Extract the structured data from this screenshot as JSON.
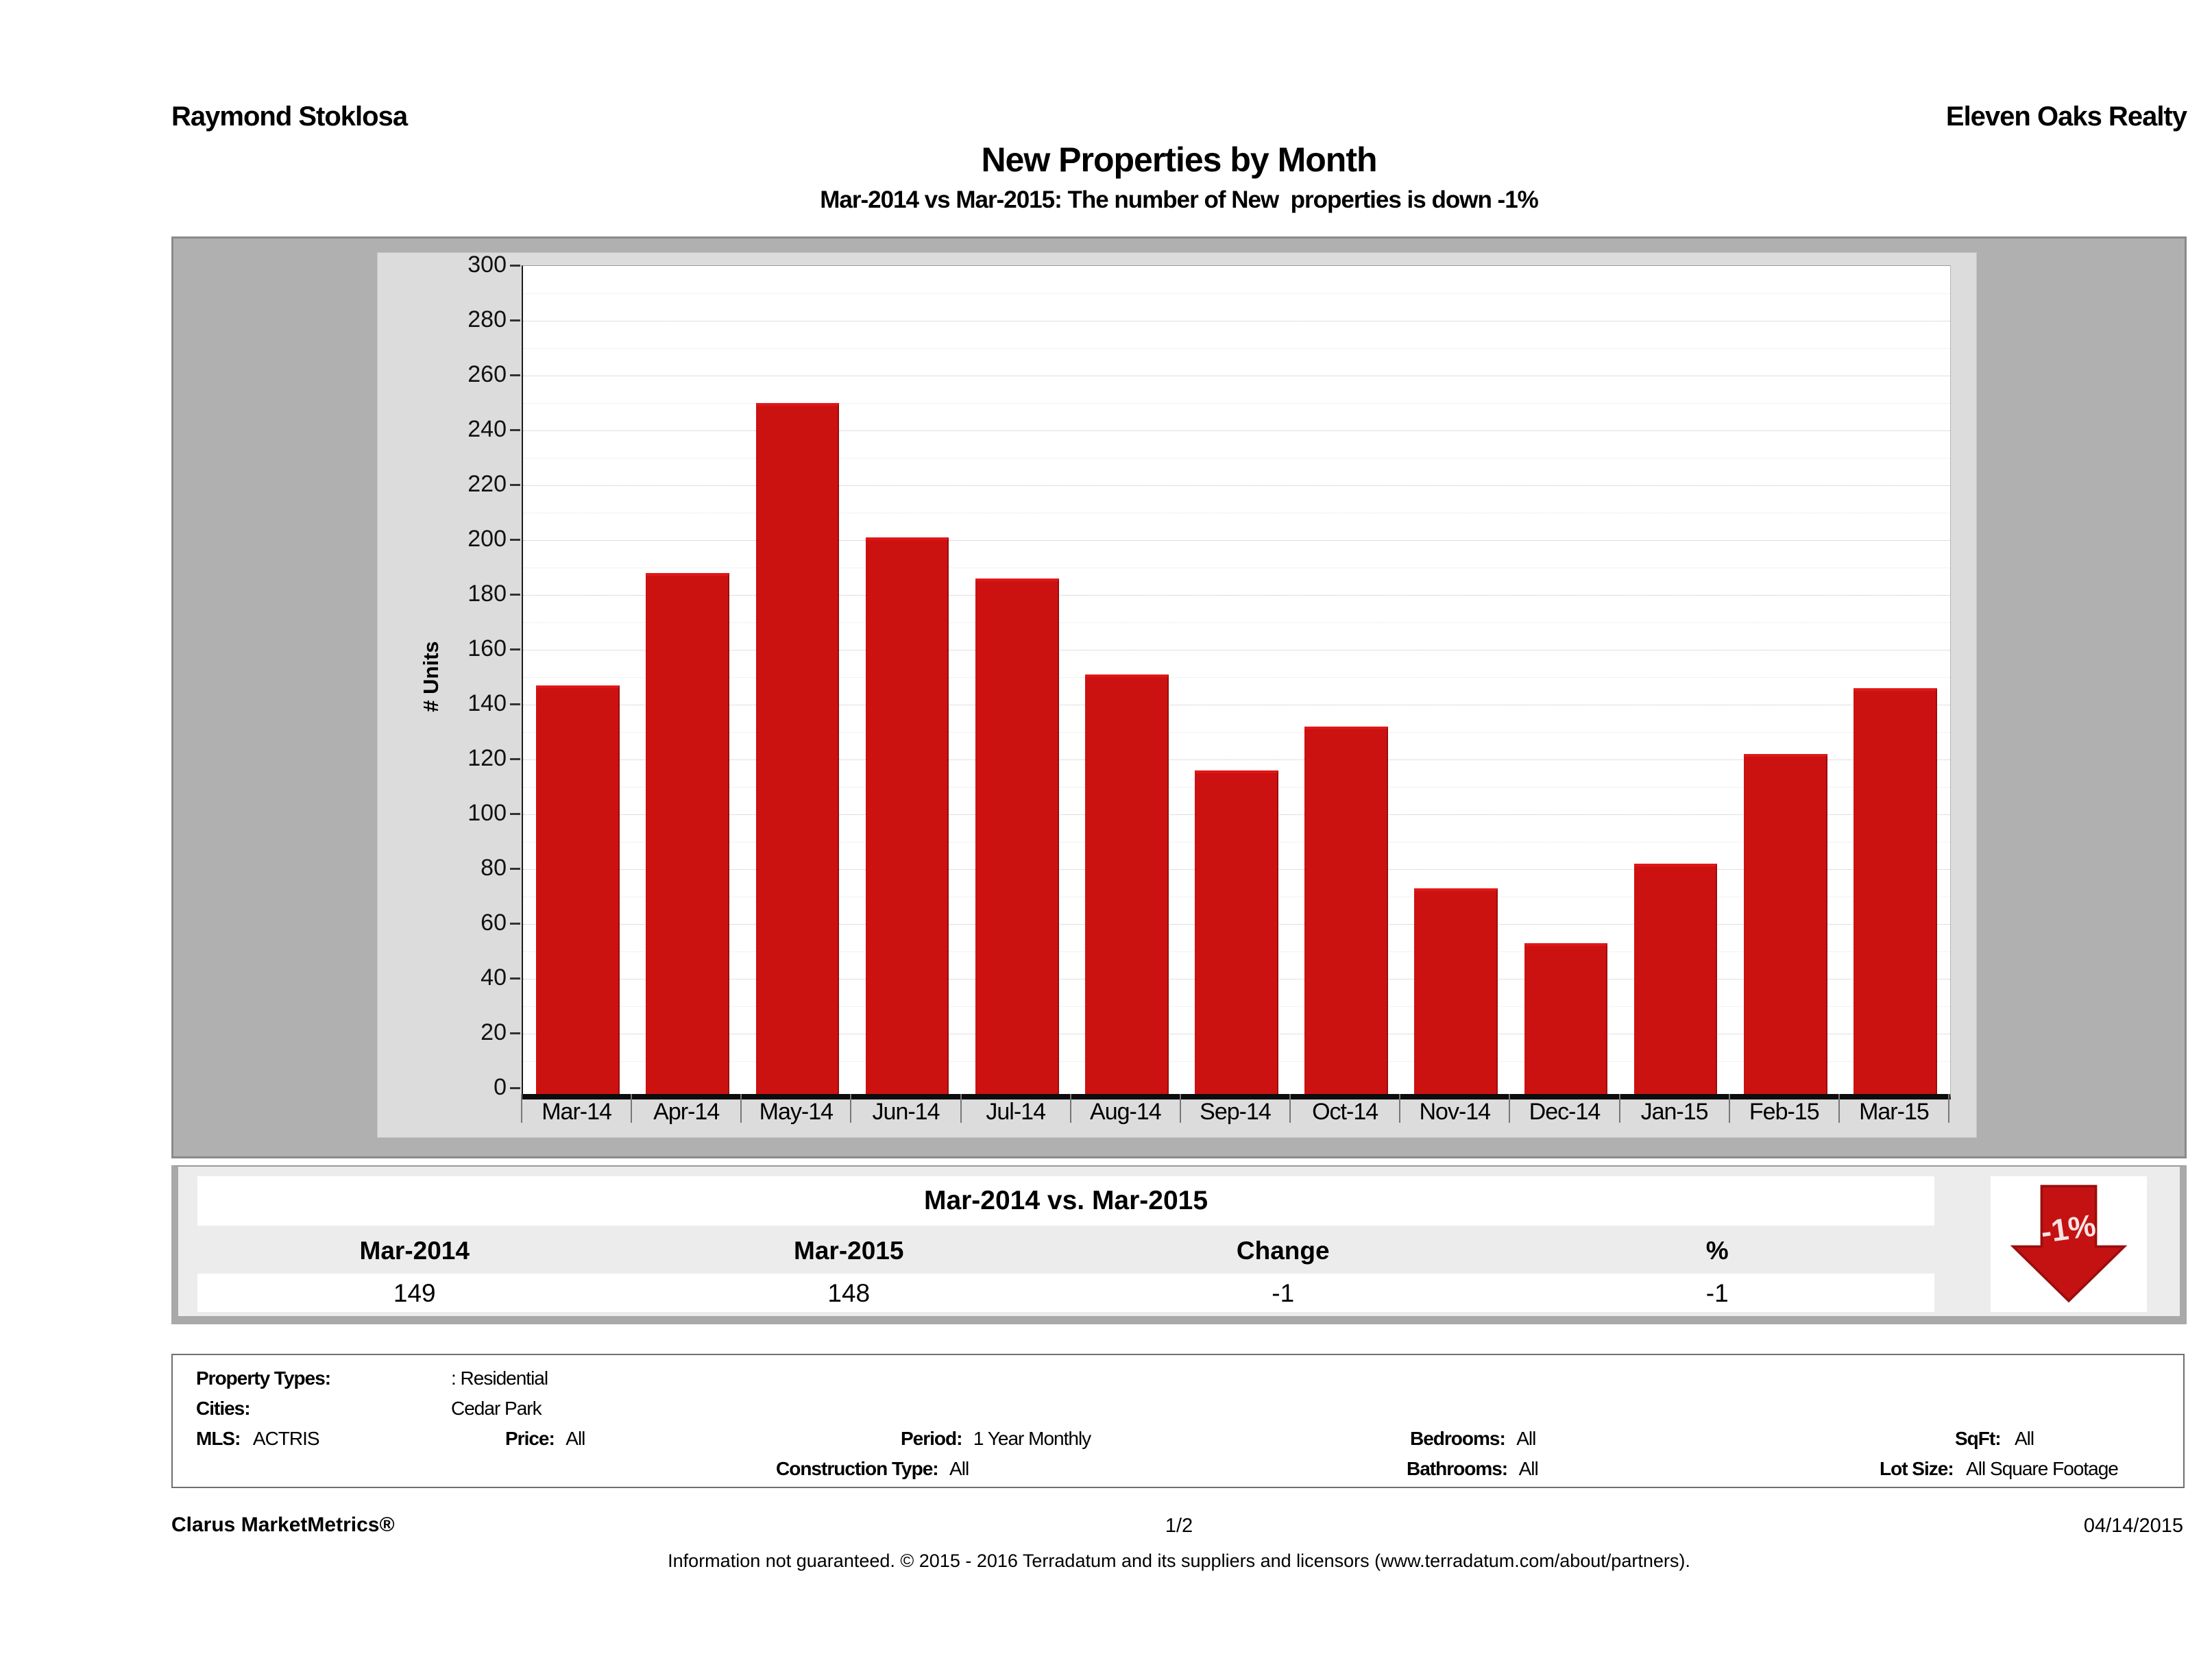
{
  "header": {
    "agent": "Raymond Stoklosa",
    "company": "Eleven Oaks Realty",
    "title": "New Properties by Month",
    "subtitle": "Mar-2014 vs Mar-2015: The number of New  properties is down -1%"
  },
  "chart_data": {
    "type": "bar",
    "title": "New Properties by Month",
    "categories": [
      "Mar-14",
      "Apr-14",
      "May-14",
      "Jun-14",
      "Jul-14",
      "Aug-14",
      "Sep-14",
      "Oct-14",
      "Nov-14",
      "Dec-14",
      "Jan-15",
      "Feb-15",
      "Mar-15"
    ],
    "values": [
      149,
      190,
      252,
      203,
      188,
      153,
      118,
      134,
      75,
      55,
      84,
      124,
      148
    ],
    "xlabel": "",
    "ylabel": "# Units",
    "ylim": [
      0,
      300
    ],
    "ytick_step": 20,
    "minor_grid_step": 10,
    "grid": true,
    "legend": "none",
    "bar_color": "#cc1111"
  },
  "comparison": {
    "title": "Mar-2014 vs. Mar-2015",
    "columns": [
      "Mar-2014",
      "Mar-2015",
      "Change",
      "%"
    ],
    "values": [
      "149",
      "148",
      "-1",
      "-1"
    ],
    "arrow_label": "-1%",
    "arrow_color": "#c41212",
    "arrow_direction": "down"
  },
  "filters": {
    "property_types_label": "Property Types:",
    "property_types_value": ": Residential",
    "cities_label": "Cities:",
    "cities_value": "Cedar Park",
    "mls_label": "MLS:",
    "mls_value": "ACTRIS",
    "price_label": "Price:",
    "price_value": "All",
    "period_label": "Period:",
    "period_value": "1 Year Monthly",
    "bedrooms_label": "Bedrooms:",
    "bedrooms_value": "All",
    "sqft_label": "SqFt:",
    "sqft_value": "All",
    "construction_label": "Construction Type:",
    "construction_value": "All",
    "bathrooms_label": "Bathrooms:",
    "bathrooms_value": "All",
    "lot_size_label": "Lot Size:",
    "lot_size_value": "All Square Footage"
  },
  "footer": {
    "brand": "Clarus MarketMetrics®",
    "page": "1/2",
    "date": "04/14/2015",
    "disclaimer": "Information not guaranteed. © 2015 - 2016 Terradatum and its suppliers and licensors (www.terradatum.com/about/partners)."
  }
}
